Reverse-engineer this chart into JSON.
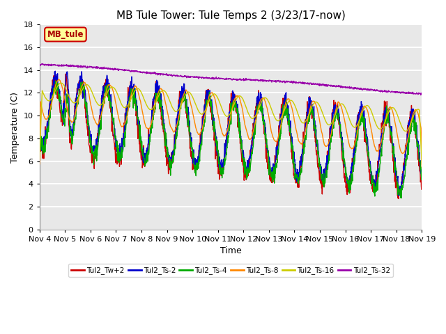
{
  "title": "MB Tule Tower: Tule Temps 2 (3/23/17-now)",
  "xlabel": "Time",
  "ylabel": "Temperature (C)",
  "xlim": [
    0,
    15
  ],
  "ylim": [
    0,
    18
  ],
  "yticks": [
    0,
    2,
    4,
    6,
    8,
    10,
    12,
    14,
    16,
    18
  ],
  "xtick_labels": [
    "Nov 4",
    "Nov 5",
    "Nov 6",
    "Nov 7",
    "Nov 8",
    "Nov 9",
    "Nov 10",
    "Nov 11",
    "Nov 12",
    "Nov 13",
    "Nov 14",
    "Nov 15",
    "Nov 16",
    "Nov 17",
    "Nov 18",
    "Nov 19"
  ],
  "legend_label": "MB_tule",
  "series_names": [
    "Tul2_Tw+2",
    "Tul2_Ts-2",
    "Tul2_Ts-4",
    "Tul2_Ts-8",
    "Tul2_Ts-16",
    "Tul2_Ts-32"
  ],
  "series_colors": [
    "#cc0000",
    "#0000cc",
    "#00aa00",
    "#ff8800",
    "#cccc00",
    "#9900aa"
  ],
  "background_color": "#e8e8e8",
  "grid_color": "#ffffff",
  "title_fontsize": 11,
  "axis_fontsize": 9,
  "tick_fontsize": 8
}
